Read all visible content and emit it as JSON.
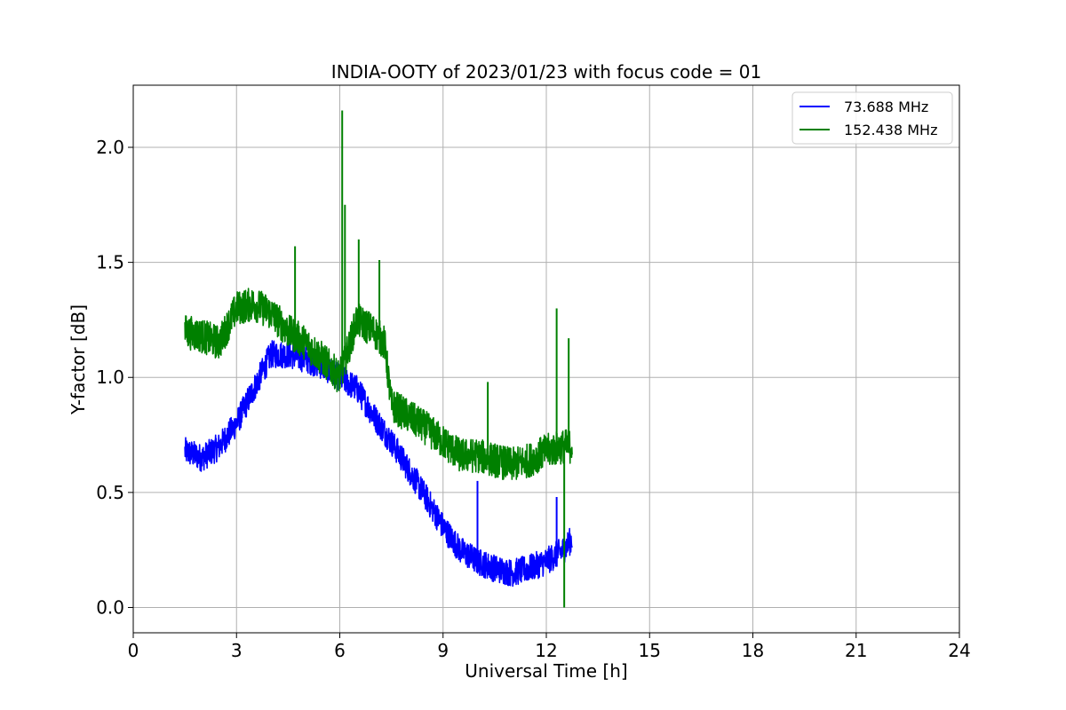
{
  "chart_data": {
    "type": "line",
    "title": "INDIA-OOTY of 2023/01/23 with focus code = 01",
    "xlabel": "Universal Time [h]",
    "ylabel": "Y-factor [dB]",
    "xlim": [
      0,
      24
    ],
    "ylim": [
      -0.11,
      2.27
    ],
    "xticks": [
      0,
      3,
      6,
      9,
      12,
      15,
      18,
      21,
      24
    ],
    "xtick_labels": [
      "0",
      "3",
      "6",
      "9",
      "12",
      "15",
      "18",
      "21",
      "24"
    ],
    "yticks": [
      0.0,
      0.5,
      1.0,
      1.5,
      2.0
    ],
    "ytick_labels": [
      "0.0",
      "0.5",
      "1.0",
      "1.5",
      "2.0"
    ],
    "grid": true,
    "legend_position": "top-right",
    "series": [
      {
        "name": "73.688 MHz",
        "color": "#0000ff",
        "noise": 0.12,
        "x": [
          1.5,
          2.0,
          2.5,
          3.0,
          3.5,
          4.0,
          4.5,
          5.0,
          5.5,
          6.0,
          6.5,
          7.0,
          7.5,
          8.0,
          8.5,
          9.0,
          9.5,
          10.0,
          10.5,
          11.0,
          11.5,
          12.0,
          12.5,
          12.75
        ],
        "y": [
          0.68,
          0.65,
          0.7,
          0.8,
          0.95,
          1.1,
          1.1,
          1.08,
          1.05,
          1.0,
          0.95,
          0.83,
          0.72,
          0.6,
          0.48,
          0.35,
          0.25,
          0.2,
          0.17,
          0.15,
          0.17,
          0.2,
          0.25,
          0.3
        ]
      },
      {
        "name": "152.438 MHz",
        "color": "#008000",
        "noise": 0.15,
        "x": [
          1.5,
          2.0,
          2.5,
          3.0,
          3.5,
          4.0,
          4.5,
          5.0,
          5.5,
          6.0,
          6.5,
          7.0,
          7.3,
          7.5,
          8.0,
          8.5,
          9.0,
          9.5,
          10.0,
          10.5,
          11.0,
          11.5,
          12.0,
          12.5,
          12.75
        ],
        "y": [
          1.2,
          1.18,
          1.15,
          1.3,
          1.32,
          1.28,
          1.2,
          1.15,
          1.08,
          1.0,
          1.25,
          1.2,
          1.15,
          0.88,
          0.83,
          0.78,
          0.72,
          0.66,
          0.66,
          0.64,
          0.62,
          0.64,
          0.68,
          0.7,
          0.7
        ]
      }
    ],
    "spikes": [
      {
        "series": 1,
        "x": 6.07,
        "y": 2.16
      },
      {
        "series": 1,
        "x": 6.15,
        "y": 1.75
      },
      {
        "series": 1,
        "x": 4.7,
        "y": 1.57
      },
      {
        "series": 1,
        "x": 6.55,
        "y": 1.6
      },
      {
        "series": 1,
        "x": 7.15,
        "y": 1.51
      },
      {
        "series": 1,
        "x": 12.3,
        "y": 1.3
      },
      {
        "series": 1,
        "x": 12.65,
        "y": 1.17
      },
      {
        "series": 1,
        "x": 10.3,
        "y": 0.98
      },
      {
        "series": 1,
        "x": 12.52,
        "y": 0.0
      },
      {
        "series": 0,
        "x": 10.0,
        "y": 0.55
      },
      {
        "series": 0,
        "x": 12.3,
        "y": 0.48
      }
    ]
  }
}
